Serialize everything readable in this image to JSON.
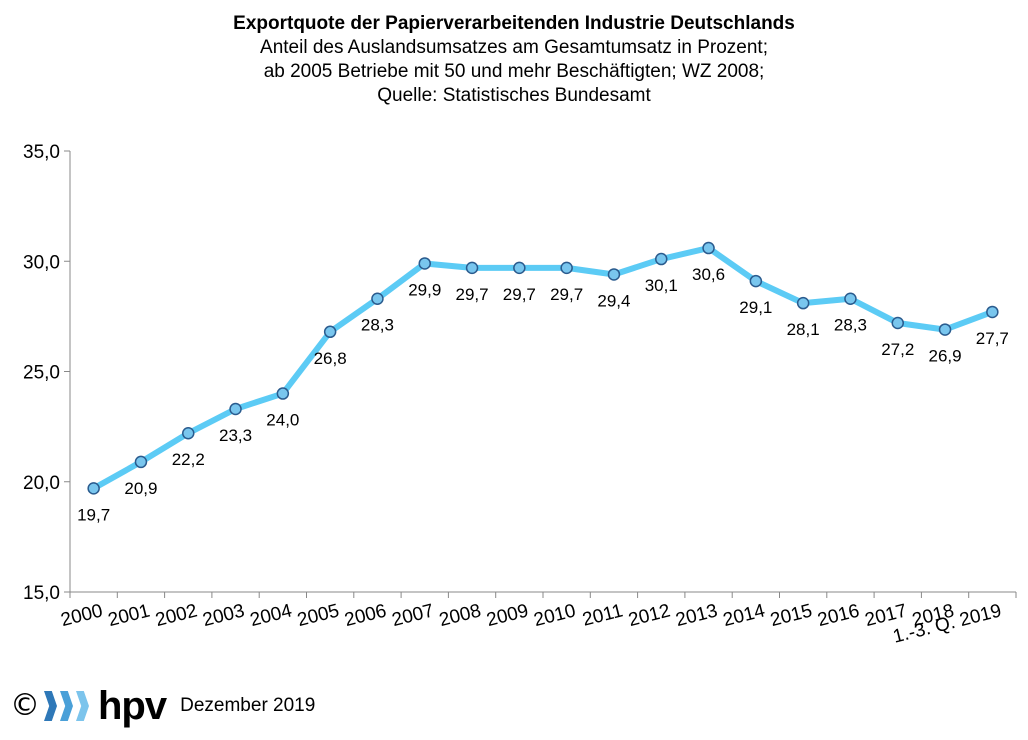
{
  "chart_data": {
    "type": "line",
    "title": "Exportquote der Papierverarbeitenden Industrie Deutschlands",
    "subtitle_lines": [
      "Anteil des Auslandsumsatzes am Gesamtumsatz in Prozent;",
      "ab 2005 Betriebe mit 50 und mehr Beschäftigten; WZ 2008;",
      "Quelle: Statistisches Bundesamt"
    ],
    "categories": [
      "2000",
      "2001",
      "2002",
      "2003",
      "2004",
      "2005",
      "2006",
      "2007",
      "2008",
      "2009",
      "2010",
      "2011",
      "2012",
      "2013",
      "2014",
      "2015",
      "2016",
      "2017",
      "2018",
      "1.-3. Q. 2019"
    ],
    "values": [
      19.7,
      20.9,
      22.2,
      23.3,
      24.0,
      26.8,
      28.3,
      29.9,
      29.7,
      29.7,
      29.7,
      29.4,
      30.1,
      30.6,
      29.1,
      28.1,
      28.3,
      27.2,
      26.9,
      27.7
    ],
    "data_labels": [
      "19,7",
      "20,9",
      "22,2",
      "23,3",
      "24,0",
      "26,8",
      "28,3",
      "29,9",
      "29,7",
      "29,7",
      "29,7",
      "29,4",
      "30,1",
      "30,6",
      "29,1",
      "28,1",
      "28,3",
      "27,2",
      "26,9",
      "27,7"
    ],
    "ylim": [
      15,
      35
    ],
    "yticks": [
      15,
      20,
      25,
      30,
      35
    ],
    "ytick_labels": [
      "15,0",
      "20,0",
      "25,0",
      "30,0",
      "35,0"
    ],
    "line_color": "#5ccbf5",
    "marker_fill": "#79c6ee",
    "marker_stroke": "#2a5b8e",
    "grid": false,
    "legend": false
  },
  "footer": {
    "copyright_symbol": "©",
    "logo_text": "hpv",
    "date": "Dezember 2019"
  }
}
